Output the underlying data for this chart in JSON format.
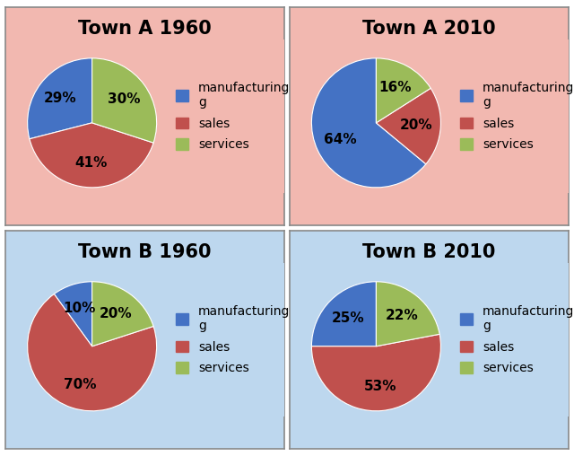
{
  "charts": [
    {
      "title": "Town A 1960",
      "values": [
        29,
        41,
        30
      ],
      "legend_labels": [
        "manufacturing\ng",
        "sales",
        "services"
      ],
      "colors": [
        "#4472C4",
        "#C0504D",
        "#9BBB59"
      ],
      "bg_color": "#F2B8B0",
      "startangle": 90,
      "pct_labels": [
        "29%",
        "41%",
        "30%"
      ]
    },
    {
      "title": "Town A 2010",
      "values": [
        64,
        20,
        16
      ],
      "legend_labels": [
        "manufacturing\ng",
        "sales",
        "services"
      ],
      "colors": [
        "#4472C4",
        "#C0504D",
        "#9BBB59"
      ],
      "bg_color": "#F2B8B0",
      "startangle": 90,
      "pct_labels": [
        "64%",
        "20%",
        "16%"
      ]
    },
    {
      "title": "Town B 1960",
      "values": [
        10,
        70,
        20
      ],
      "legend_labels": [
        "manufacturing\ng",
        "sales",
        "services"
      ],
      "colors": [
        "#4472C4",
        "#C0504D",
        "#9BBB59"
      ],
      "bg_color": "#BDD7EE",
      "startangle": 90,
      "pct_labels": [
        "10%",
        "70%",
        "20%"
      ]
    },
    {
      "title": "Town B 2010",
      "values": [
        25,
        53,
        22
      ],
      "legend_labels": [
        "manufacturing\ng",
        "sales",
        "services"
      ],
      "colors": [
        "#4472C4",
        "#C0504D",
        "#9BBB59"
      ],
      "bg_color": "#BDD7EE",
      "startangle": 90,
      "pct_labels": [
        "25%",
        "53%",
        "22%"
      ]
    }
  ],
  "fig_bg": "#FFFFFF",
  "title_fontsize": 15,
  "pct_fontsize": 11,
  "legend_fontsize": 10,
  "border_color": "#888888"
}
